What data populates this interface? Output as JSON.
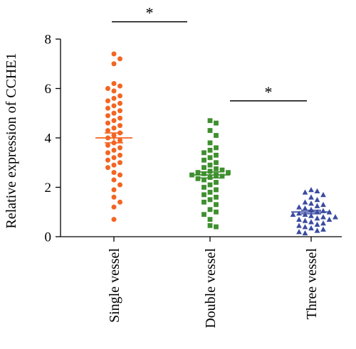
{
  "chart_data": {
    "type": "scatter",
    "ylabel": "Relative expression of CCHE1",
    "ylim": [
      0,
      8
    ],
    "yticks": [
      "0",
      "2",
      "4",
      "6",
      "8"
    ],
    "categories": [
      "Single vessel",
      "Double vessel",
      "Three vessel"
    ],
    "series": [
      {
        "category": "Single vessel",
        "marker": "circle",
        "color": "#f26522",
        "mean": 4.0,
        "sem": 0.2,
        "values": [
          7.4,
          7.2,
          7.0,
          6.2,
          6.1,
          6.0,
          5.9,
          5.7,
          5.6,
          5.5,
          5.4,
          5.3,
          5.2,
          5.1,
          5.0,
          4.9,
          4.8,
          4.7,
          4.6,
          4.5,
          4.4,
          4.3,
          4.2,
          4.1,
          4.0,
          3.9,
          3.8,
          3.7,
          3.6,
          3.5,
          3.4,
          3.3,
          3.2,
          3.1,
          3.0,
          2.9,
          2.8,
          2.6,
          2.5,
          2.3,
          2.1,
          1.9,
          1.6,
          1.4,
          1.2,
          0.7
        ]
      },
      {
        "category": "Double vessel",
        "marker": "square",
        "color": "#3f8f2f",
        "mean": 2.5,
        "sem": 0.12,
        "values": [
          4.7,
          4.6,
          4.3,
          4.1,
          3.8,
          3.6,
          3.5,
          3.4,
          3.3,
          3.2,
          3.1,
          3.0,
          2.9,
          2.8,
          2.75,
          2.7,
          2.65,
          2.6,
          2.6,
          2.55,
          2.5,
          2.5,
          2.45,
          2.4,
          2.35,
          2.3,
          2.2,
          2.1,
          2.0,
          1.9,
          1.8,
          1.7,
          1.6,
          1.5,
          1.4,
          1.3,
          1.1,
          1.0,
          0.9,
          0.7,
          0.45,
          0.4
        ]
      },
      {
        "category": "Three vessel",
        "marker": "triangle",
        "color": "#3b4ba0",
        "mean": 1.0,
        "sem": 0.07,
        "values": [
          1.9,
          1.85,
          1.8,
          1.7,
          1.6,
          1.5,
          1.4,
          1.35,
          1.3,
          1.25,
          1.2,
          1.15,
          1.1,
          1.05,
          1.0,
          1.0,
          0.95,
          0.9,
          0.9,
          0.85,
          0.8,
          0.8,
          0.75,
          0.7,
          0.7,
          0.65,
          0.6,
          0.55,
          0.5,
          0.45,
          0.4,
          0.35,
          0.3,
          0.25,
          0.2,
          0.15
        ]
      }
    ],
    "significance": [
      {
        "from": 0,
        "to": 1,
        "label": "*",
        "y": 8.7
      },
      {
        "from": 1,
        "to": 2,
        "label": "*",
        "y": 5.5
      }
    ]
  }
}
